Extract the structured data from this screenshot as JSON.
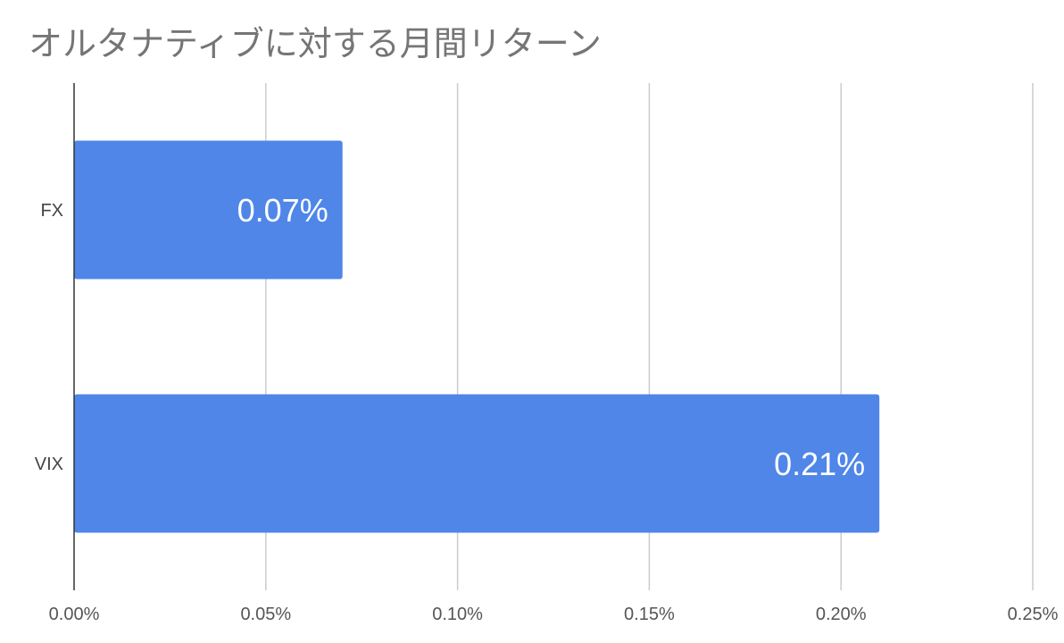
{
  "chart_data": {
    "type": "bar",
    "orientation": "horizontal",
    "title": "オルタナティブに対する月間リターン",
    "categories": [
      "FX",
      "VIX"
    ],
    "values": [
      0.0007,
      0.0021
    ],
    "data_labels": [
      "0.07%",
      "0.21%"
    ],
    "xlabel": "",
    "ylabel": "",
    "xlim": [
      0,
      0.0025
    ],
    "ticks": [
      0,
      0.0005,
      0.001,
      0.0015,
      0.002,
      0.0025
    ],
    "tick_labels": [
      "0.00%",
      "0.05%",
      "0.10%",
      "0.15%",
      "0.20%",
      "0.25%"
    ],
    "grid": true,
    "legend": "none",
    "colors": {
      "bar": "#4f86e8",
      "grid": "#cccccc",
      "axis": "#333333",
      "title": "#757575"
    }
  }
}
